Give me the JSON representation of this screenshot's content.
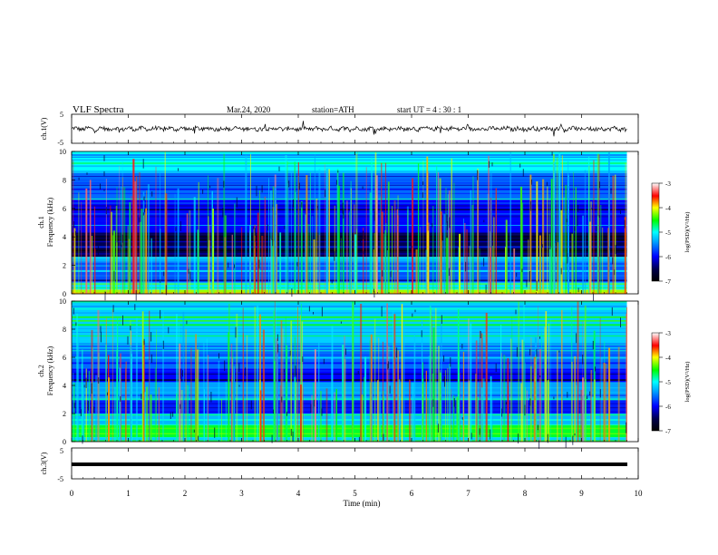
{
  "header": {
    "title": "VLF  Spectra",
    "date": "Mar.24, 2020",
    "station": "station=ATH",
    "start": "start  UT  =   4  : 30 : 1"
  },
  "chart_data": {
    "type": "heatmap",
    "x_axis": {
      "label": "Time  (min)",
      "range": [
        0,
        10
      ],
      "ticks": [
        "0",
        "1",
        "2",
        "3",
        "4",
        "5",
        "6",
        "7",
        "8",
        "9",
        "10"
      ],
      "data_end_min": 9.8
    },
    "panels": [
      {
        "id": "ch1_waveform",
        "kind": "line",
        "ylabel": "ch.1(V)",
        "ylim": [
          -5,
          5
        ],
        "yticks": [
          "5",
          "-5"
        ],
        "baseline": 0,
        "line_color": "#000000"
      },
      {
        "id": "ch1_spectrogram",
        "kind": "heatmap",
        "ylabel_channel": "ch.1",
        "ylabel": "Frequency  (kHz)",
        "ylim": [
          0,
          10
        ],
        "yticks": [
          "0",
          "2",
          "4",
          "6",
          "8",
          "10"
        ],
        "colorbar": {
          "label": "log(PSD)(V²/Hz)",
          "range": [
            -7,
            -3
          ],
          "ticks": [
            "-3",
            "-4",
            "-5",
            "-6",
            "-7"
          ]
        },
        "bands": [
          {
            "range_khz": [
              0,
              0.3
            ],
            "level": -4.2
          },
          {
            "range_khz": [
              0.3,
              0.8
            ],
            "level": -5.1
          },
          {
            "range_khz": [
              0.8,
              2.2
            ],
            "level": -5.7
          },
          {
            "range_khz": [
              2.2,
              2.6
            ],
            "level": -5.3
          },
          {
            "range_khz": [
              2.6,
              4.2
            ],
            "level": -6.5
          },
          {
            "range_khz": [
              4.2,
              6.6
            ],
            "level": -6.0
          },
          {
            "range_khz": [
              6.6,
              8.5
            ],
            "level": -5.6
          },
          {
            "range_khz": [
              8.5,
              10
            ],
            "level": -5.0
          }
        ]
      },
      {
        "id": "ch2_spectrogram",
        "kind": "heatmap",
        "ylabel_channel": "ch.2",
        "ylabel": "Frequency  (kHz)",
        "ylim": [
          0,
          10
        ],
        "yticks": [
          "0",
          "2",
          "4",
          "6",
          "8",
          "10"
        ],
        "colorbar": {
          "label": "log(PSD)(V²/Hz)",
          "range": [
            -7,
            -3
          ],
          "ticks": [
            "-3",
            "-4",
            "-5",
            "-6",
            "-7"
          ]
        },
        "bands": [
          {
            "range_khz": [
              0,
              0.3
            ],
            "level": -5.2
          },
          {
            "range_khz": [
              0.3,
              1.2
            ],
            "level": -4.6
          },
          {
            "range_khz": [
              1.2,
              2.0
            ],
            "level": -5.3
          },
          {
            "range_khz": [
              2.0,
              3.0
            ],
            "level": -5.9
          },
          {
            "range_khz": [
              3.0,
              4.2
            ],
            "level": -5.4
          },
          {
            "range_khz": [
              4.2,
              5.2
            ],
            "level": -6.0
          },
          {
            "range_khz": [
              5.2,
              7.0
            ],
            "level": -5.6
          },
          {
            "range_khz": [
              7.0,
              10
            ],
            "level": -5.2
          }
        ]
      },
      {
        "id": "ch3_waveform",
        "kind": "line",
        "ylabel": "ch.3(V)",
        "ylim": [
          -5,
          5
        ],
        "yticks": [
          "5",
          "-5"
        ],
        "baseline": 0,
        "line_color": "#000000"
      }
    ],
    "grid": false,
    "legend": "colorbar right of each spectrogram"
  }
}
